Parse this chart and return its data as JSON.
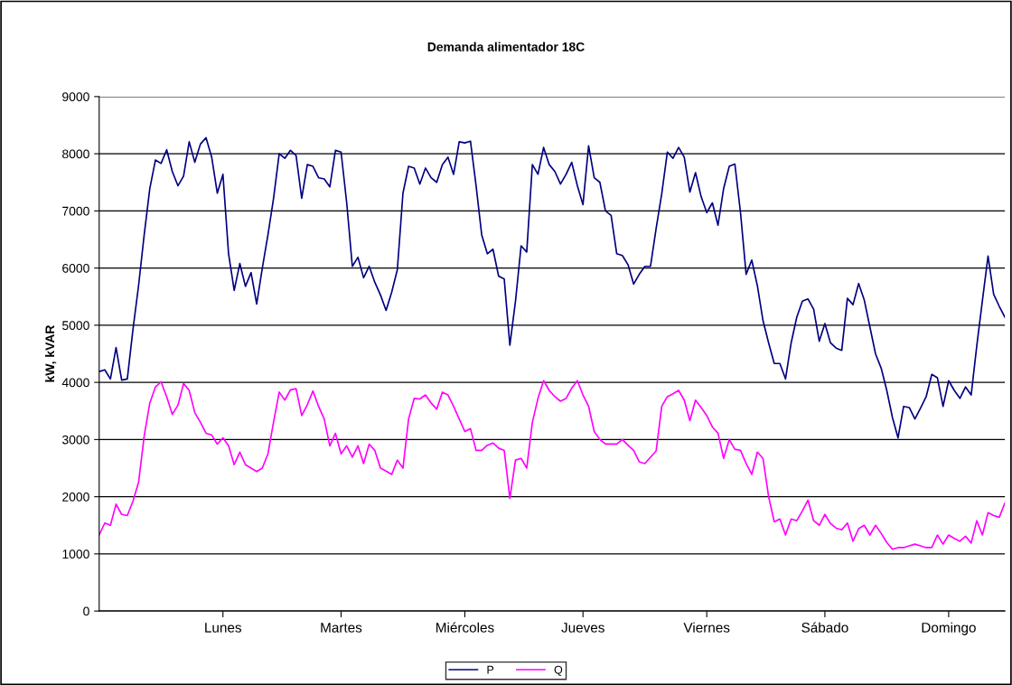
{
  "chart_data": {
    "type": "line",
    "title": "Demanda alimentador 18C",
    "ylabel": "kW, kVAR",
    "ylim": [
      0,
      9000
    ],
    "yticks": [
      0,
      1000,
      2000,
      3000,
      4000,
      5000,
      6000,
      7000,
      8000,
      9000
    ],
    "categories": [
      null,
      null,
      null,
      null,
      null,
      null,
      null,
      null,
      null,
      null,
      null,
      null,
      null,
      null,
      null,
      null,
      null,
      null,
      null,
      null,
      null,
      null,
      "Lunes",
      null,
      null,
      null,
      null,
      null,
      null,
      null,
      null,
      null,
      null,
      null,
      null,
      null,
      null,
      null,
      null,
      null,
      null,
      null,
      null,
      "Martes",
      null,
      null,
      null,
      null,
      null,
      null,
      null,
      null,
      null,
      null,
      null,
      null,
      null,
      null,
      null,
      null,
      null,
      null,
      null,
      null,
      null,
      "Miércoles",
      null,
      null,
      null,
      null,
      null,
      null,
      null,
      null,
      null,
      null,
      null,
      null,
      null,
      null,
      null,
      null,
      null,
      null,
      null,
      null,
      "Jueves",
      null,
      null,
      null,
      null,
      null,
      null,
      null,
      null,
      null,
      null,
      null,
      null,
      null,
      null,
      null,
      null,
      null,
      null,
      null,
      null,
      null,
      "Viernes",
      null,
      null,
      null,
      null,
      null,
      null,
      null,
      null,
      null,
      null,
      null,
      null,
      null,
      null,
      null,
      null,
      null,
      null,
      null,
      null,
      "Sábado",
      null,
      null,
      null,
      null,
      null,
      null,
      null,
      null,
      null,
      null,
      null,
      null,
      null,
      null,
      null,
      null,
      null,
      null,
      null,
      null,
      null,
      "Domingo",
      null,
      null,
      null,
      null,
      null,
      null,
      null,
      null,
      null,
      null
    ],
    "grid": "y",
    "legend": "bottom",
    "marker": "none",
    "line_style": "solid",
    "series": [
      {
        "name": "P",
        "color": "#000080",
        "values": [
          4190,
          4220,
          4060,
          4610,
          4040,
          4060,
          4920,
          5690,
          6580,
          7390,
          7890,
          7830,
          8070,
          7690,
          7440,
          7610,
          8210,
          7850,
          8170,
          8280,
          7940,
          7310,
          7640,
          6250,
          5610,
          6080,
          5680,
          5920,
          5370,
          6000,
          6580,
          7220,
          8000,
          7920,
          8060,
          7970,
          7220,
          7810,
          7780,
          7580,
          7560,
          7420,
          8060,
          8030,
          7140,
          6030,
          6190,
          5830,
          6030,
          5750,
          5530,
          5260,
          5580,
          5970,
          7310,
          7780,
          7750,
          7470,
          7750,
          7580,
          7500,
          7810,
          7940,
          7640,
          8210,
          8190,
          8220,
          7440,
          6580,
          6250,
          6330,
          5860,
          5810,
          4650,
          5420,
          6390,
          6280,
          7810,
          7640,
          8110,
          7810,
          7690,
          7470,
          7640,
          7850,
          7440,
          7110,
          8140,
          7580,
          7500,
          7000,
          6920,
          6250,
          6220,
          6060,
          5720,
          5890,
          6030,
          6030,
          6690,
          7300,
          8030,
          7920,
          8110,
          7940,
          7330,
          7670,
          7250,
          6970,
          7140,
          6750,
          7390,
          7780,
          7820,
          6970,
          5890,
          6140,
          5690,
          5080,
          4690,
          4330,
          4330,
          4060,
          4690,
          5140,
          5420,
          5460,
          5280,
          4720,
          5030,
          4690,
          4600,
          4560,
          5470,
          5360,
          5730,
          5440,
          4970,
          4500,
          4250,
          3860,
          3390,
          3030,
          3580,
          3560,
          3360,
          3550,
          3750,
          4140,
          4080,
          3580,
          4030,
          3860,
          3720,
          3920,
          3780,
          4640,
          5430,
          6210,
          5540,
          5330,
          5140
        ]
      },
      {
        "name": "Q",
        "color": "#ff00ff",
        "values": [
          1330,
          1540,
          1500,
          1870,
          1690,
          1670,
          1920,
          2250,
          3060,
          3640,
          3920,
          4010,
          3750,
          3440,
          3600,
          3980,
          3860,
          3470,
          3300,
          3110,
          3080,
          2920,
          3030,
          2890,
          2560,
          2780,
          2560,
          2500,
          2440,
          2500,
          2750,
          3310,
          3830,
          3690,
          3870,
          3890,
          3420,
          3610,
          3850,
          3580,
          3360,
          2890,
          3110,
          2750,
          2890,
          2690,
          2890,
          2580,
          2920,
          2810,
          2500,
          2450,
          2390,
          2640,
          2500,
          3360,
          3720,
          3710,
          3780,
          3640,
          3530,
          3830,
          3780,
          3580,
          3360,
          3140,
          3190,
          2810,
          2810,
          2900,
          2940,
          2850,
          2810,
          1970,
          2640,
          2670,
          2500,
          3300,
          3720,
          4030,
          3860,
          3750,
          3670,
          3720,
          3900,
          4030,
          3780,
          3580,
          3140,
          3000,
          2920,
          2920,
          2920,
          3000,
          2900,
          2810,
          2610,
          2580,
          2690,
          2800,
          3580,
          3750,
          3800,
          3860,
          3690,
          3330,
          3690,
          3560,
          3420,
          3220,
          3110,
          2670,
          3000,
          2830,
          2810,
          2580,
          2390,
          2780,
          2670,
          2000,
          1560,
          1610,
          1330,
          1610,
          1580,
          1750,
          1940,
          1580,
          1500,
          1690,
          1530,
          1450,
          1420,
          1540,
          1220,
          1440,
          1500,
          1330,
          1500,
          1360,
          1200,
          1080,
          1110,
          1110,
          1140,
          1170,
          1140,
          1110,
          1110,
          1330,
          1170,
          1330,
          1270,
          1220,
          1310,
          1190,
          1580,
          1330,
          1720,
          1670,
          1640,
          1890
        ]
      }
    ]
  }
}
